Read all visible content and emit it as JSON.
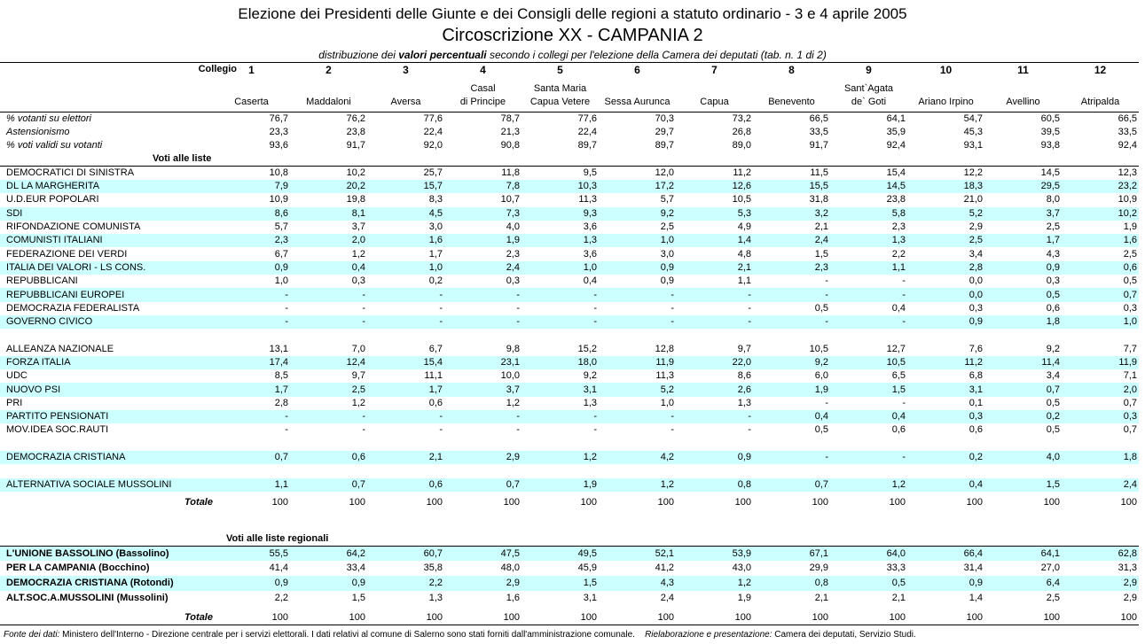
{
  "header": {
    "title": "Elezione dei Presidenti delle Giunte e dei Consigli delle regioni a statuto ordinario - 3 e 4 aprile 2005",
    "subtitle": "Circoscrizione XX - CAMPANIA  2",
    "description": {
      "before": "distribuzione dei ",
      "emphasis": "valori percentuali",
      "after": " secondo i collegi per l'elezione della Camera dei deputati (tab. n. 1 di 2)"
    }
  },
  "columns": {
    "label": "Collegio",
    "items": [
      {
        "number": "1",
        "name": [
          "Caserta"
        ]
      },
      {
        "number": "2",
        "name": [
          "Maddaloni"
        ]
      },
      {
        "number": "3",
        "name": [
          "Aversa"
        ]
      },
      {
        "number": "4",
        "name": [
          "Casal",
          "di Principe"
        ]
      },
      {
        "number": "5",
        "name": [
          "Santa Maria",
          "Capua Vetere"
        ]
      },
      {
        "number": "6",
        "name": [
          "Sessa Aurunca"
        ]
      },
      {
        "number": "7",
        "name": [
          "Capua"
        ]
      },
      {
        "number": "8",
        "name": [
          "Benevento"
        ]
      },
      {
        "number": "9",
        "name": [
          "Sant`Agata",
          "de` Goti"
        ]
      },
      {
        "number": "10",
        "name": [
          "Ariano Irpino"
        ]
      },
      {
        "number": "11",
        "name": [
          "Avellino"
        ]
      },
      {
        "number": "12",
        "name": [
          "Atripalda"
        ]
      }
    ]
  },
  "stats": [
    {
      "label": "% votanti su elettori",
      "values": [
        "76,7",
        "76,2",
        "77,6",
        "78,7",
        "77,6",
        "70,3",
        "73,2",
        "66,5",
        "64,1",
        "54,7",
        "60,5",
        "66,5"
      ]
    },
    {
      "label": "Astensionismo",
      "values": [
        "23,3",
        "23,8",
        "22,4",
        "21,3",
        "22,4",
        "29,7",
        "26,8",
        "33,5",
        "35,9",
        "45,3",
        "39,5",
        "33,5"
      ]
    },
    {
      "label": "% voti validi su votanti",
      "values": [
        "93,6",
        "91,7",
        "92,0",
        "90,8",
        "89,7",
        "89,7",
        "89,0",
        "91,7",
        "92,4",
        "93,1",
        "93,8",
        "92,4"
      ]
    }
  ],
  "lists": {
    "heading": "Voti alle liste",
    "groups": [
      [
        {
          "label": "DEMOCRATICI DI SINISTRA",
          "values": [
            "10,8",
            "10,2",
            "25,7",
            "11,8",
            "9,5",
            "12,0",
            "11,2",
            "11,5",
            "15,4",
            "12,2",
            "14,5",
            "12,3"
          ]
        },
        {
          "label": "DL LA MARGHERITA",
          "shade": true,
          "values": [
            "7,9",
            "20,2",
            "15,7",
            "7,8",
            "10,3",
            "17,2",
            "12,6",
            "15,5",
            "14,5",
            "18,3",
            "29,5",
            "23,2"
          ]
        },
        {
          "label": "U.D.EUR POPOLARI",
          "values": [
            "10,9",
            "19,8",
            "8,3",
            "10,7",
            "11,3",
            "5,7",
            "10,5",
            "31,8",
            "23,8",
            "21,0",
            "8,0",
            "10,9"
          ]
        },
        {
          "label": "SDI",
          "shade": true,
          "values": [
            "8,6",
            "8,1",
            "4,5",
            "7,3",
            "9,3",
            "9,2",
            "5,3",
            "3,2",
            "5,8",
            "5,2",
            "3,7",
            "10,2"
          ]
        },
        {
          "label": "RIFONDAZIONE COMUNISTA",
          "values": [
            "5,7",
            "3,7",
            "3,0",
            "4,0",
            "3,6",
            "2,5",
            "4,9",
            "2,1",
            "2,3",
            "2,9",
            "2,5",
            "1,9"
          ]
        },
        {
          "label": "COMUNISTI ITALIANI",
          "shade": true,
          "values": [
            "2,3",
            "2,0",
            "1,6",
            "1,9",
            "1,3",
            "1,0",
            "1,4",
            "2,4",
            "1,3",
            "2,5",
            "1,7",
            "1,6"
          ]
        },
        {
          "label": "FEDERAZIONE DEI VERDI",
          "values": [
            "6,7",
            "1,2",
            "1,7",
            "2,3",
            "3,6",
            "3,0",
            "4,8",
            "1,5",
            "2,2",
            "3,4",
            "4,3",
            "2,5"
          ]
        },
        {
          "label": "ITALIA DEI VALORI - LS CONS.",
          "shade": true,
          "values": [
            "0,9",
            "0,4",
            "1,0",
            "2,4",
            "1,0",
            "0,9",
            "2,1",
            "2,3",
            "1,1",
            "2,8",
            "0,9",
            "0,6"
          ]
        },
        {
          "label": "REPUBBLICANI",
          "values": [
            "1,0",
            "0,3",
            "0,2",
            "0,3",
            "0,4",
            "0,9",
            "1,1",
            "-",
            "-",
            "0,0",
            "0,3",
            "0,5"
          ]
        },
        {
          "label": "REPUBBLICANI EUROPEI",
          "shade": true,
          "values": [
            "-",
            "-",
            "-",
            "-",
            "-",
            "-",
            "-",
            "-",
            "-",
            "0,0",
            "0,5",
            "0,7"
          ]
        },
        {
          "label": "DEMOCRAZIA FEDERALISTA",
          "values": [
            "-",
            "-",
            "-",
            "-",
            "-",
            "-",
            "-",
            "0,5",
            "0,4",
            "0,3",
            "0,6",
            "0,3"
          ]
        },
        {
          "label": "GOVERNO CIVICO",
          "shade": true,
          "values": [
            "-",
            "-",
            "-",
            "-",
            "-",
            "-",
            "-",
            "-",
            "-",
            "0,9",
            "1,8",
            "1,0"
          ]
        }
      ],
      [
        {
          "label": "ALLEANZA NAZIONALE",
          "values": [
            "13,1",
            "7,0",
            "6,7",
            "9,8",
            "15,2",
            "12,8",
            "9,7",
            "10,5",
            "12,7",
            "7,6",
            "9,2",
            "7,7"
          ]
        },
        {
          "label": "FORZA ITALIA",
          "shade": true,
          "values": [
            "17,4",
            "12,4",
            "15,4",
            "23,1",
            "18,0",
            "11,9",
            "22,0",
            "9,2",
            "10,5",
            "11,2",
            "11,4",
            "11,9"
          ]
        },
        {
          "label": "UDC",
          "values": [
            "8,5",
            "9,7",
            "11,1",
            "10,0",
            "9,2",
            "11,3",
            "8,6",
            "6,0",
            "6,5",
            "6,8",
            "3,4",
            "7,1"
          ]
        },
        {
          "label": "NUOVO PSI",
          "shade": true,
          "values": [
            "1,7",
            "2,5",
            "1,7",
            "3,7",
            "3,1",
            "5,2",
            "2,6",
            "1,9",
            "1,5",
            "3,1",
            "0,7",
            "2,0"
          ]
        },
        {
          "label": "PRI",
          "values": [
            "2,8",
            "1,2",
            "0,6",
            "1,2",
            "1,3",
            "1,0",
            "1,3",
            "-",
            "-",
            "0,1",
            "0,5",
            "0,7"
          ]
        },
        {
          "label": "PARTITO PENSIONATI",
          "shade": true,
          "values": [
            "-",
            "-",
            "-",
            "-",
            "-",
            "-",
            "-",
            "0,4",
            "0,4",
            "0,3",
            "0,2",
            "0,3"
          ]
        },
        {
          "label": "MOV.IDEA SOC.RAUTI",
          "values": [
            "-",
            "-",
            "-",
            "-",
            "-",
            "-",
            "-",
            "0,5",
            "0,6",
            "0,6",
            "0,5",
            "0,7"
          ]
        }
      ],
      [
        {
          "label": "DEMOCRAZIA CRISTIANA",
          "shade": true,
          "values": [
            "0,7",
            "0,6",
            "2,1",
            "2,9",
            "1,2",
            "4,2",
            "0,9",
            "-",
            "-",
            "0,2",
            "4,0",
            "1,8"
          ]
        }
      ],
      [
        {
          "label": "ALTERNATIVA SOCIALE MUSSOLINI",
          "shade": true,
          "values": [
            "1,1",
            "0,7",
            "0,6",
            "0,7",
            "1,9",
            "1,2",
            "0,8",
            "0,7",
            "1,2",
            "0,4",
            "1,5",
            "2,4"
          ]
        }
      ]
    ],
    "total": {
      "label": "Totale",
      "values": [
        "100",
        "100",
        "100",
        "100",
        "100",
        "100",
        "100",
        "100",
        "100",
        "100",
        "100",
        "100"
      ]
    }
  },
  "regional": {
    "heading": "Voti alle liste regionali",
    "rows": [
      {
        "label": "L'UNIONE BASSOLINO (Bassolino)",
        "shade": true,
        "values": [
          "55,5",
          "64,2",
          "60,7",
          "47,5",
          "49,5",
          "52,1",
          "53,9",
          "67,1",
          "64,0",
          "66,4",
          "64,1",
          "62,8"
        ]
      },
      {
        "label": "PER LA CAMPANIA (Bocchino)",
        "values": [
          "41,4",
          "33,4",
          "35,8",
          "48,0",
          "45,9",
          "41,2",
          "43,0",
          "29,9",
          "33,3",
          "31,4",
          "27,0",
          "31,3"
        ]
      },
      {
        "label": "DEMOCRAZIA CRISTIANA (Rotondi)",
        "shade": true,
        "values": [
          "0,9",
          "0,9",
          "2,2",
          "2,9",
          "1,5",
          "4,3",
          "1,2",
          "0,8",
          "0,5",
          "0,9",
          "6,4",
          "2,9"
        ]
      },
      {
        "label": "ALT.SOC.A.MUSSOLINI (Mussolini)",
        "values": [
          "2,2",
          "1,5",
          "1,3",
          "1,6",
          "3,1",
          "2,4",
          "1,9",
          "2,1",
          "2,1",
          "1,4",
          "2,5",
          "2,9"
        ]
      }
    ],
    "total": {
      "label": "Totale",
      "values": [
        "100",
        "100",
        "100",
        "100",
        "100",
        "100",
        "100",
        "100",
        "100",
        "100",
        "100",
        "100"
      ]
    }
  },
  "footer": {
    "source_label": "Fonte dei dati:",
    "source_text": " Ministero dell'Interno - Direzione centrale per i servizi elettorali. I dati relativi al comune di Salerno sono stati forniti dall'amministrazione comunale.",
    "credit_label": "Rielaborazione e presentazione:",
    "credit_text": " Camera dei deputati, Servizio Studi."
  }
}
